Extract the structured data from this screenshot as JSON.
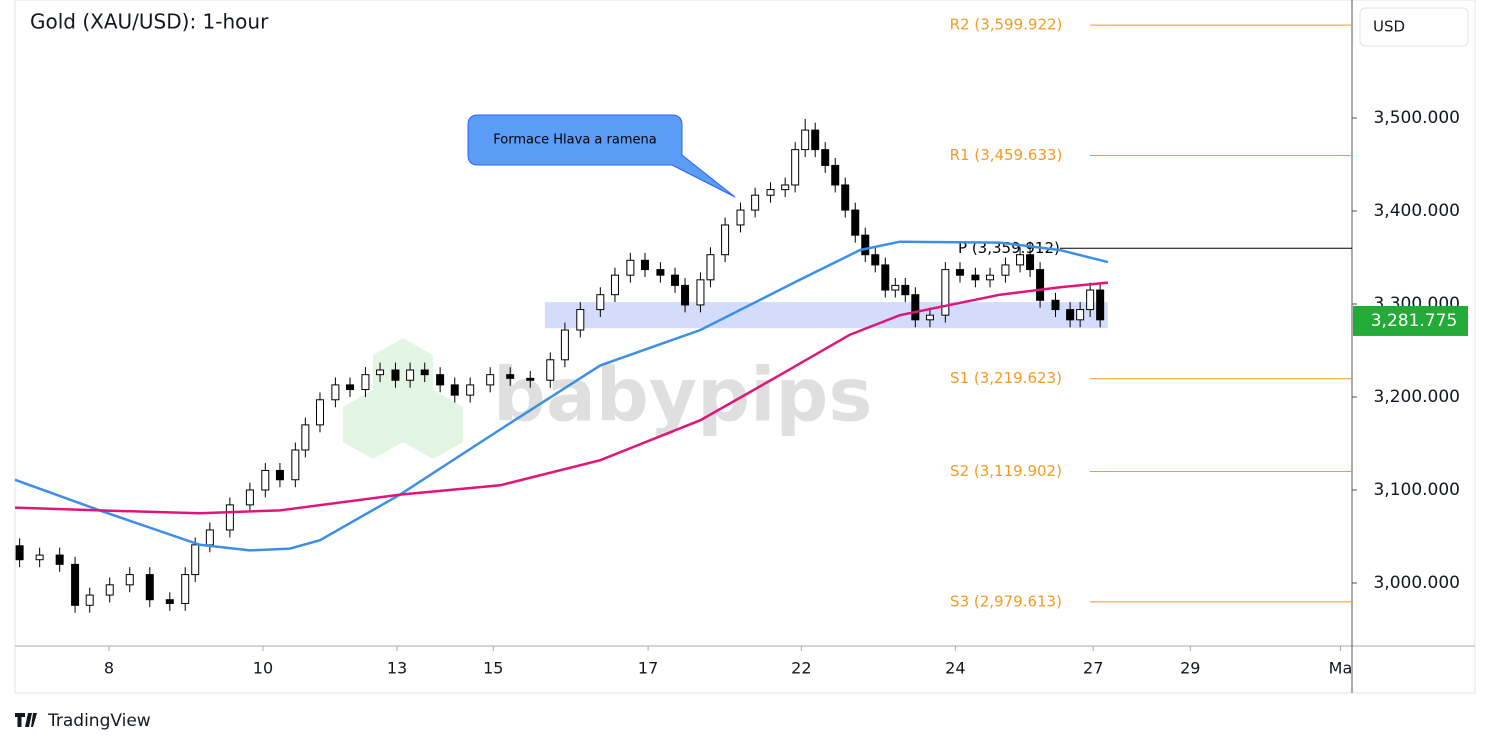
{
  "chart_data": {
    "type": "candlestick",
    "title": "Gold (XAU/USD): 1-hour",
    "currency": "USD",
    "watermark": "babypips",
    "brand": "TradingView",
    "annotation": "Formace Hlava a ramena",
    "last_price": {
      "value": 3281.775,
      "label": "3,281.775",
      "color": "#22ab36"
    },
    "ylim": [
      2933.3,
      3626.9
    ],
    "yticks": [
      {
        "value": 3000,
        "label": "3,000.000"
      },
      {
        "value": 3100,
        "label": "3,100.000"
      },
      {
        "value": 3200,
        "label": "3,200.000"
      },
      {
        "value": 3300,
        "label": "3,300.000"
      },
      {
        "value": 3400,
        "label": "3,400.000"
      },
      {
        "value": 3500,
        "label": "3,500.000"
      }
    ],
    "xlim": [
      0,
      17.36
    ],
    "xticks": [
      {
        "value": 1.22,
        "label": "8"
      },
      {
        "value": 3.22,
        "label": "10"
      },
      {
        "value": 4.96,
        "label": "13"
      },
      {
        "value": 6.21,
        "label": "15"
      },
      {
        "value": 8.22,
        "label": "17"
      },
      {
        "value": 10.21,
        "label": "22"
      },
      {
        "value": 12.21,
        "label": "24"
      },
      {
        "value": 14.0,
        "label": "27"
      },
      {
        "value": 15.26,
        "label": "29"
      },
      {
        "value": 17.21,
        "label": "Ma"
      }
    ],
    "up_color": "#ffffff",
    "down_color": "#000000",
    "candles": {
      "x": [
        0.06,
        0.32,
        0.58,
        0.78,
        0.97,
        1.23,
        1.49,
        1.75,
        2.01,
        2.21,
        2.34,
        2.53,
        2.79,
        3.05,
        3.25,
        3.44,
        3.64,
        3.77,
        3.96,
        4.16,
        4.35,
        4.55,
        4.74,
        4.94,
        5.13,
        5.32,
        5.52,
        5.71,
        5.91,
        6.17,
        6.43,
        6.69,
        6.95,
        7.14,
        7.34,
        7.6,
        7.79,
        7.99,
        8.18,
        8.38,
        8.57,
        8.7,
        8.9,
        9.03,
        9.22,
        9.42,
        9.61,
        9.81,
        10.0,
        10.13,
        10.26,
        10.39,
        10.52,
        10.65,
        10.78,
        10.91,
        11.04,
        11.17,
        11.3,
        11.43,
        11.56,
        11.69,
        11.88,
        12.08,
        12.27,
        12.47,
        12.66,
        12.86,
        13.05,
        13.18,
        13.31,
        13.51,
        13.7,
        13.83,
        13.96,
        14.09
      ],
      "open": [
        3040,
        3025,
        3030,
        3020,
        2976,
        2987,
        2998,
        3009,
        2982,
        2978,
        3009,
        3041,
        3057,
        3084,
        3100,
        3121,
        3111,
        3143,
        3170,
        3197,
        3213,
        3208,
        3224,
        3229,
        3218,
        3229,
        3224,
        3213,
        3202,
        3213,
        3224,
        3220,
        3218,
        3240,
        3272,
        3294,
        3310,
        3331,
        3347,
        3337,
        3331,
        3320,
        3299,
        3326,
        3353,
        3385,
        3401,
        3417,
        3423,
        3428,
        3466,
        3487,
        3466,
        3449,
        3428,
        3401,
        3374,
        3353,
        3342,
        3315,
        3320,
        3310,
        3283,
        3288,
        3337,
        3331,
        3326,
        3331,
        3342,
        3353,
        3337,
        3304,
        3294,
        3283,
        3294,
        3315
      ],
      "high": [
        3048,
        3038,
        3038,
        3028,
        2995,
        3006,
        3017,
        3017,
        2990,
        3017,
        3049,
        3065,
        3092,
        3108,
        3129,
        3129,
        3151,
        3178,
        3205,
        3221,
        3221,
        3232,
        3237,
        3237,
        3237,
        3237,
        3232,
        3221,
        3221,
        3232,
        3232,
        3228,
        3248,
        3280,
        3302,
        3318,
        3339,
        3355,
        3355,
        3345,
        3339,
        3328,
        3334,
        3361,
        3393,
        3409,
        3425,
        3431,
        3436,
        3474,
        3499,
        3495,
        3474,
        3457,
        3436,
        3409,
        3382,
        3361,
        3350,
        3328,
        3328,
        3318,
        3296,
        3345,
        3345,
        3339,
        3339,
        3350,
        3361,
        3367,
        3345,
        3312,
        3302,
        3302,
        3323,
        3323
      ],
      "low": [
        3017,
        3017,
        3012,
        2968,
        2968,
        2979,
        2990,
        2974,
        2970,
        2970,
        3001,
        3033,
        3049,
        3076,
        3092,
        3103,
        3103,
        3135,
        3162,
        3189,
        3200,
        3200,
        3216,
        3210,
        3210,
        3216,
        3205,
        3194,
        3194,
        3205,
        3212,
        3210,
        3210,
        3232,
        3264,
        3286,
        3302,
        3323,
        3329,
        3323,
        3312,
        3291,
        3291,
        3318,
        3345,
        3377,
        3393,
        3409,
        3415,
        3420,
        3458,
        3458,
        3441,
        3420,
        3393,
        3366,
        3345,
        3334,
        3307,
        3307,
        3302,
        3275,
        3275,
        3280,
        3323,
        3318,
        3318,
        3323,
        3334,
        3329,
        3296,
        3286,
        3275,
        3275,
        3286,
        3275
      ],
      "close": [
        3025,
        3030,
        3020,
        2976,
        2987,
        2998,
        3009,
        2982,
        2978,
        3009,
        3041,
        3057,
        3084,
        3100,
        3121,
        3111,
        3143,
        3170,
        3197,
        3213,
        3208,
        3224,
        3229,
        3218,
        3229,
        3224,
        3213,
        3202,
        3213,
        3224,
        3220,
        3218,
        3240,
        3272,
        3294,
        3310,
        3331,
        3347,
        3337,
        3331,
        3320,
        3299,
        3326,
        3353,
        3385,
        3401,
        3417,
        3423,
        3428,
        3466,
        3487,
        3466,
        3449,
        3428,
        3401,
        3374,
        3353,
        3342,
        3315,
        3320,
        3310,
        3283,
        3288,
        3337,
        3331,
        3326,
        3331,
        3342,
        3353,
        3337,
        3304,
        3294,
        3283,
        3294,
        3315,
        3283
      ]
    },
    "moving_averages": [
      {
        "color": "#3d8fe6",
        "x": [
          0,
          1.1,
          2.4,
          3.05,
          3.57,
          3.96,
          5,
          6.3,
          7.6,
          8.9,
          10.19,
          10.97,
          11.49,
          12.79,
          13.57,
          14.19
        ],
        "values": [
          3111,
          3078,
          3041,
          3035,
          3037,
          3046,
          3095,
          3165,
          3234,
          3272,
          3326,
          3358,
          3367,
          3366,
          3358,
          3345
        ]
      },
      {
        "color": "#e0157a",
        "x": [
          0,
          1.1,
          2.4,
          3.44,
          5,
          6.3,
          7.6,
          8.9,
          9.94,
          10.84,
          11.49,
          12.79,
          13.57,
          14.19
        ],
        "values": [
          3081,
          3078,
          3075,
          3078,
          3095,
          3105,
          3132,
          3175,
          3224,
          3267,
          3288,
          3310,
          3318,
          3323
        ]
      }
    ],
    "zone": {
      "ylim": [
        3274,
        3302
      ],
      "xlim": [
        6.88,
        14.19
      ],
      "color": "#c9d3fb"
    },
    "pivots": [
      {
        "value": 3599.922,
        "label": "R2 (3,599.922)",
        "color": "#f59a23"
      },
      {
        "value": 3459.633,
        "label": "R1 (3,459.633)",
        "color": "#f59a23"
      },
      {
        "value": 3359.912,
        "label": "P (3,359.912)",
        "color": "#000000"
      },
      {
        "value": 3219.623,
        "label": "S1 (3,219.623)",
        "color": "#f59a23"
      },
      {
        "value": 3119.902,
        "label": "S2 (3,119.902)",
        "color": "#f59a23"
      },
      {
        "value": 2979.613,
        "label": "S3 (2,979.613)",
        "color": "#f59a23"
      }
    ]
  }
}
